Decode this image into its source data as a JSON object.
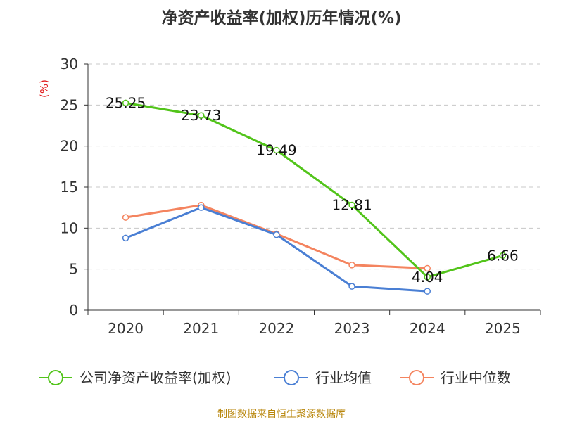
{
  "chart_data": {
    "type": "line",
    "title": "净资产收益率(加权)历年情况(%)",
    "ylabel": "(%)",
    "xlabel": "",
    "ylim": [
      0,
      30
    ],
    "yticks": [
      0,
      5,
      10,
      15,
      20,
      25,
      30
    ],
    "categories": [
      "2020",
      "2021",
      "2022",
      "2023",
      "2024",
      "2025"
    ],
    "grid": true,
    "legend_position": "bottom",
    "series": [
      {
        "name": "公司净资产收益率(加权)",
        "color": "#52c41a",
        "values": [
          25.25,
          23.73,
          19.49,
          12.81,
          4.04,
          6.66
        ],
        "labels": [
          "25.25",
          "23.73",
          "19.49",
          "12.81",
          "4.04",
          "6.66"
        ]
      },
      {
        "name": "行业均值",
        "color": "#4a7fd4",
        "values": [
          8.8,
          12.5,
          9.2,
          2.9,
          2.3,
          null
        ]
      },
      {
        "name": "行业中位数",
        "color": "#f4845f",
        "values": [
          11.3,
          12.8,
          9.3,
          5.5,
          5.1,
          null
        ]
      }
    ]
  },
  "source_note": "制图数据来自恒生聚源数据库"
}
